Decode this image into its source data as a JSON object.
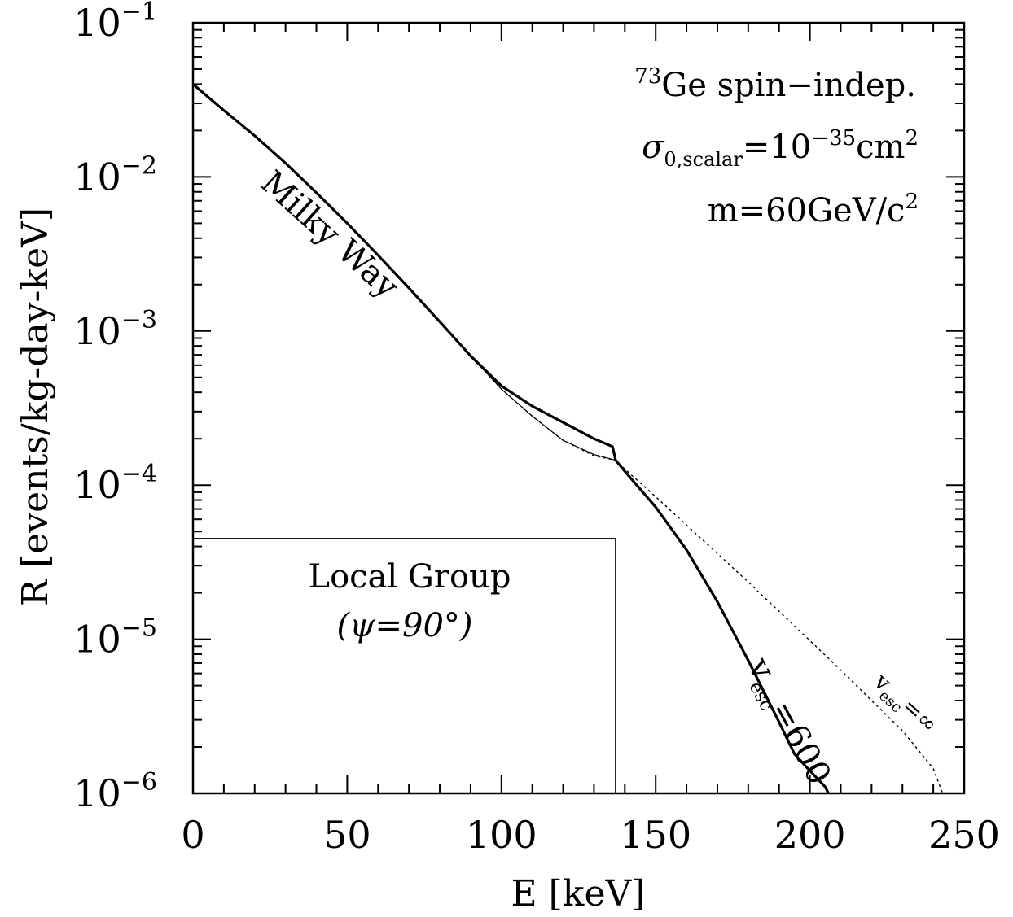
{
  "chart_data": {
    "type": "line",
    "xlabel": "E [keV]",
    "ylabel": "R [events/kg-day-keV]",
    "xlim": [
      0,
      250
    ],
    "ylim": [
      1e-06,
      0.1
    ],
    "yscale": "log",
    "x_ticks": [
      "0",
      "50",
      "100",
      "150",
      "200",
      "250"
    ],
    "y_tick_exponents": [
      "-1",
      "-2",
      "-3",
      "-4",
      "-5",
      "-6"
    ],
    "y_tick_base": "10",
    "legend_text": {
      "isotope_sup": "73",
      "isotope_line": "Ge spin−indep.",
      "sigma_symbol": "σ",
      "sigma_sub": "0,scalar",
      "sigma_eq": "=10",
      "sigma_exp": "−35",
      "sigma_unit": "cm",
      "sigma_unit_exp": "2",
      "mass_line": "m=60GeV/c",
      "mass_exp": "2"
    },
    "labels": {
      "milky_way": "Milky Way",
      "local_group_1": "Local Group",
      "local_group_2": "(ψ=90°)",
      "vesc600_v": "v",
      "vesc600_sub": "esc",
      "vesc600_val": "=600",
      "vescinf_v": "v",
      "vescinf_sub": "esc",
      "vescinf_val": "=∞"
    },
    "series": [
      {
        "x": [
          0,
          10,
          20,
          30,
          40,
          50,
          60,
          70,
          80,
          90,
          100,
          110,
          120,
          130,
          136,
          137,
          140,
          150,
          160,
          170,
          180,
          190,
          195,
          200,
          205,
          206
        ],
        "y": [
          0.04,
          0.027,
          0.0185,
          0.0123,
          0.0079,
          0.005,
          0.0031,
          0.0019,
          0.00115,
          0.00069,
          0.00044,
          0.000325,
          0.000255,
          0.0002,
          0.000178,
          0.000145,
          0.000123,
          7.2e-05,
          3.8e-05,
          1.75e-05,
          7.3e-06,
          2.9e-06,
          1.8e-06,
          1.4e-06,
          1.1e-06,
          1e-06
        ]
      },
      {
        "x": [
          0,
          10,
          20,
          30,
          40,
          50,
          60,
          70,
          80,
          90,
          100,
          110,
          120,
          130,
          137,
          140,
          150,
          160,
          170,
          180,
          190,
          200,
          210,
          220,
          230,
          240,
          243
        ],
        "y": [
          0.04,
          0.027,
          0.0185,
          0.0123,
          0.0079,
          0.005,
          0.0031,
          0.0019,
          0.00115,
          0.00069,
          0.00042,
          0.00028,
          0.000195,
          0.000155,
          0.000145,
          0.000127,
          8.4e-05,
          5.5e-05,
          3.6e-05,
          2.35e-05,
          1.52e-05,
          9.8e-06,
          6.3e-06,
          4e-06,
          2.55e-06,
          1.45e-06,
          1e-06
        ]
      },
      {
        "x": [
          0,
          10,
          20,
          30,
          40,
          50,
          60,
          70,
          80,
          90,
          100,
          110,
          120,
          130,
          137
        ],
        "y": [
          0.04,
          0.027,
          0.0185,
          0.0123,
          0.0079,
          0.005,
          0.0031,
          0.0019,
          0.00115,
          0.00069,
          0.00042,
          0.00028,
          0.000195,
          0.000158,
          0.000145
        ]
      }
    ],
    "local_group_box": {
      "x_end": 137,
      "y_top": 4.5e-05
    }
  }
}
